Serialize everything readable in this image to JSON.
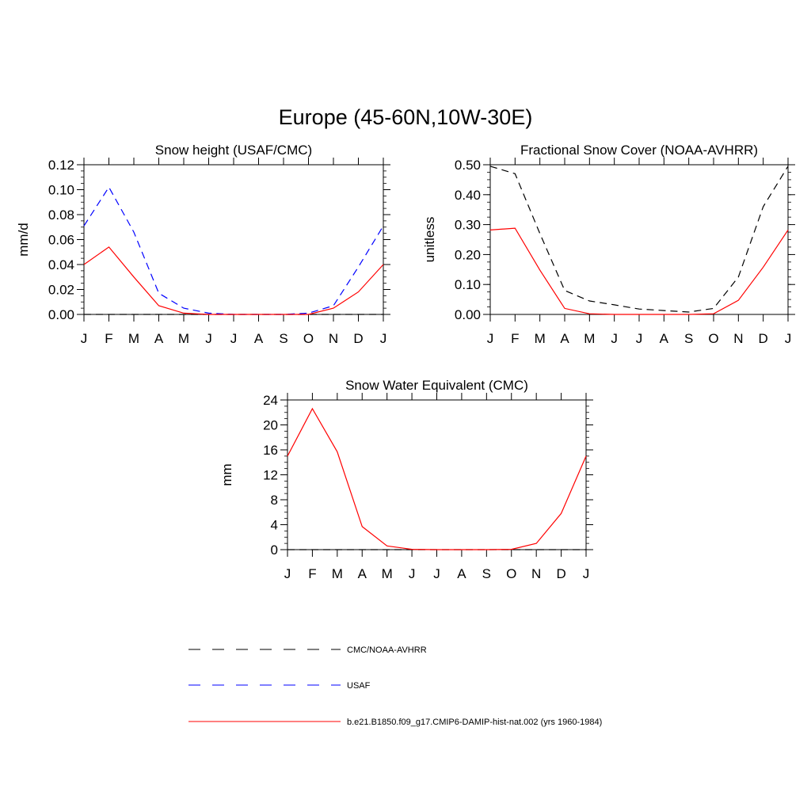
{
  "main_title": "Europe (45-60N,10W-30E)",
  "colors": {
    "obs": "#000000",
    "usaf": "#0000ff",
    "model": "#ff0000"
  },
  "legend": {
    "entries": [
      {
        "label": "CMC/NOAA-AVHRR",
        "color": "#000000",
        "dash": "dashed"
      },
      {
        "label": "USAF",
        "color": "#0000ff",
        "dash": "dashed"
      },
      {
        "label": "b.e21.B1850.f09_g17.CMIP6-DAMIP-hist-nat.002 (yrs 1960-1984)",
        "color": "#ff0000",
        "dash": "solid"
      }
    ]
  },
  "chart_data": [
    {
      "type": "line",
      "title": "Snow height (USAF/CMC)",
      "xlabel": "",
      "ylabel": "mm/d",
      "categories": [
        "J",
        "F",
        "M",
        "A",
        "M",
        "J",
        "J",
        "A",
        "S",
        "O",
        "N",
        "D",
        "J"
      ],
      "ylim": [
        0,
        0.12
      ],
      "yticks": [
        0,
        0.02,
        0.04,
        0.06,
        0.08,
        0.1,
        0.12
      ],
      "ytick_labels": [
        "0.00",
        "0.02",
        "0.04",
        "0.06",
        "0.08",
        "0.10",
        "0.12"
      ],
      "yminor": 0.005,
      "series": [
        {
          "name": "CMC/NOAA-AVHRR",
          "color": "#000000",
          "dash": "dashed",
          "values": [
            0,
            0,
            0,
            0,
            0,
            0,
            0,
            0,
            0,
            0,
            0,
            0,
            0
          ]
        },
        {
          "name": "USAF",
          "color": "#0000ff",
          "dash": "dashed",
          "values": [
            0.071,
            0.102,
            0.066,
            0.017,
            0.005,
            0.001,
            0,
            0,
            0,
            0.001,
            0.007,
            0.038,
            0.071
          ]
        },
        {
          "name": "b.e21.B1850.f09_g17.CMIP6-DAMIP-hist-nat.002 (yrs 1960-1984)",
          "color": "#ff0000",
          "dash": "solid",
          "values": [
            0.04,
            0.054,
            0.03,
            0.007,
            0.001,
            0,
            0,
            0,
            0,
            0,
            0.005,
            0.018,
            0.04
          ]
        }
      ]
    },
    {
      "type": "line",
      "title": "Fractional Snow Cover (NOAA-AVHRR)",
      "xlabel": "",
      "ylabel": "unitless",
      "categories": [
        "J",
        "F",
        "M",
        "A",
        "M",
        "J",
        "J",
        "A",
        "S",
        "O",
        "N",
        "D",
        "J"
      ],
      "ylim": [
        0,
        0.5
      ],
      "yticks": [
        0,
        0.1,
        0.2,
        0.3,
        0.4,
        0.5
      ],
      "ytick_labels": [
        "0.00",
        "0.10",
        "0.20",
        "0.30",
        "0.40",
        "0.50"
      ],
      "yminor": 0.025,
      "series": [
        {
          "name": "CMC/NOAA-AVHRR",
          "color": "#000000",
          "dash": "dashed",
          "values": [
            0.495,
            0.47,
            0.27,
            0.08,
            0.045,
            0.032,
            0.018,
            0.013,
            0.008,
            0.02,
            0.125,
            0.36,
            0.495
          ]
        },
        {
          "name": "b.e21.B1850.f09_g17.CMIP6-DAMIP-hist-nat.002 (yrs 1960-1984)",
          "color": "#ff0000",
          "dash": "solid",
          "values": [
            0.282,
            0.288,
            0.148,
            0.02,
            0.002,
            0,
            0,
            0,
            0,
            0.002,
            0.047,
            0.158,
            0.282
          ]
        }
      ]
    },
    {
      "type": "line",
      "title": "Snow Water Equivalent (CMC)",
      "xlabel": "",
      "ylabel": "mm",
      "categories": [
        "J",
        "F",
        "M",
        "A",
        "M",
        "J",
        "J",
        "A",
        "S",
        "O",
        "N",
        "D",
        "J"
      ],
      "ylim": [
        0,
        24
      ],
      "yticks": [
        0,
        4,
        8,
        12,
        16,
        20,
        24
      ],
      "ytick_labels": [
        "0",
        "4",
        "8",
        "12",
        "16",
        "20",
        "24"
      ],
      "yminor": 1,
      "series": [
        {
          "name": "CMC/NOAA-AVHRR",
          "color": "#000000",
          "dash": "dashed",
          "values": [
            0,
            0,
            0,
            0,
            0,
            0,
            0,
            0,
            0,
            0,
            0,
            0,
            0
          ]
        },
        {
          "name": "b.e21.B1850.f09_g17.CMIP6-DAMIP-hist-nat.002 (yrs 1960-1984)",
          "color": "#ff0000",
          "dash": "solid",
          "values": [
            15.0,
            22.6,
            15.7,
            3.7,
            0.6,
            0.05,
            0,
            0,
            0,
            0.05,
            1.0,
            5.8,
            15.0
          ]
        }
      ]
    }
  ]
}
